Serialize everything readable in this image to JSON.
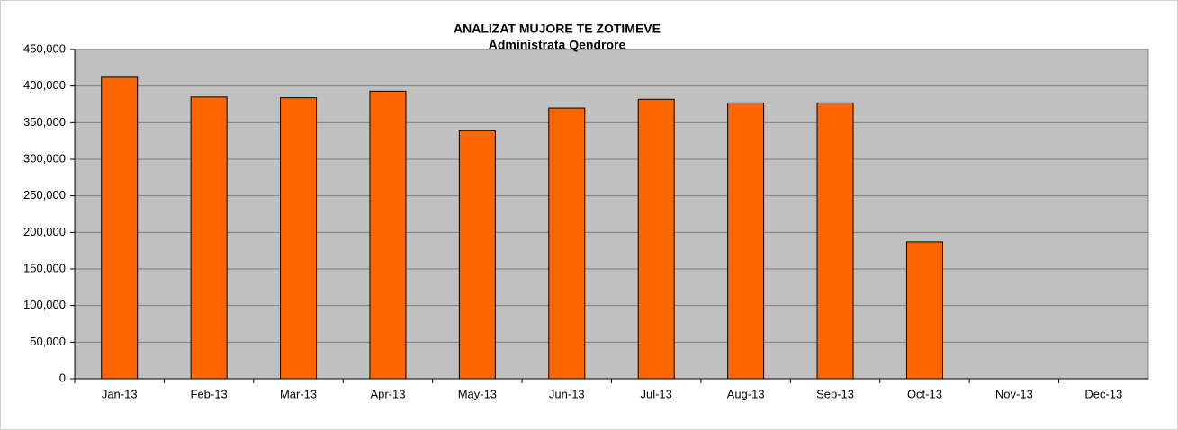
{
  "chart_data": {
    "type": "bar",
    "title": "ANALIZAT MUJORE TE ZOTIMEVE",
    "subtitle": "Administrata Qendrore",
    "categories": [
      "Jan-13",
      "Feb-13",
      "Mar-13",
      "Apr-13",
      "May-13",
      "Jun-13",
      "Jul-13",
      "Aug-13",
      "Sep-13",
      "Oct-13",
      "Nov-13",
      "Dec-13"
    ],
    "values": [
      412000,
      385000,
      384000,
      393000,
      339000,
      370000,
      382000,
      377000,
      377000,
      187000,
      0,
      0
    ],
    "color": "#ff6600",
    "ylim": [
      0,
      450000
    ],
    "yticks": [
      0,
      {
        "value": 50000,
        "label": "50,000"
      },
      {
        "value": 100000,
        "label": "100,000"
      },
      {
        "value": 150000,
        "label": "150,000"
      },
      {
        "value": 200000,
        "label": "200,000"
      },
      {
        "value": 250000,
        "label": "250,000"
      },
      {
        "value": 300000,
        "label": "300,000"
      },
      {
        "value": 350000,
        "label": "350,000"
      },
      {
        "value": 400000,
        "label": "400,000"
      },
      {
        "value": 450000,
        "label": "450,000"
      }
    ],
    "grid": true
  }
}
